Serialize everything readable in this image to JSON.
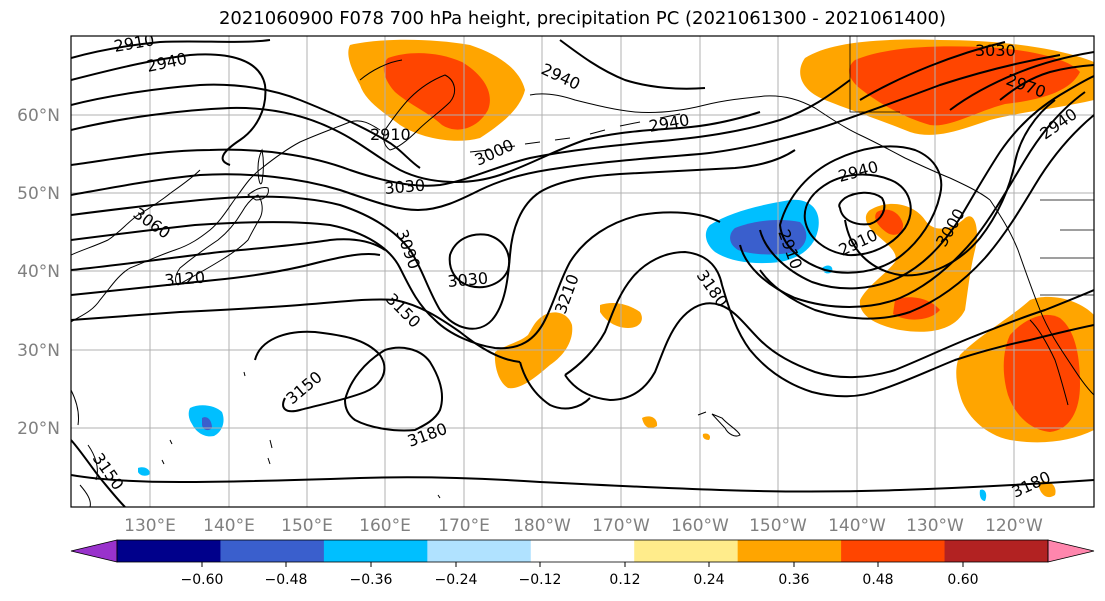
{
  "title": "2021060900 F078 700 hPa height, precipitation PC (2021061300 - 2021061400)",
  "latitude_labels": [
    "60°N",
    "50°N",
    "40°N",
    "30°N",
    "20°N"
  ],
  "longitude_labels": [
    "130°E",
    "140°E",
    "150°E",
    "160°E",
    "170°E",
    "180°W",
    "170°W",
    "160°W",
    "150°W",
    "140°W",
    "130°W",
    "120°W"
  ],
  "contour_labels": {
    "c2910_nw": "2910",
    "c2940_nw": "2940",
    "c2940_n": "2940",
    "c2910_n": "2910",
    "c2940_mid": "2940",
    "c3000_n": "3000",
    "c3030_n": "3030",
    "c3060_w": "3060",
    "c3120_w": "3120",
    "c3090": "3090",
    "c3030_low": "3030",
    "c3150_a": "3150",
    "c3210": "3210",
    "c3180_e": "3180",
    "c2940_e": "2940",
    "c2910_low": "2910",
    "c2910_e": "2910",
    "c3000_e": "3000",
    "c3030_ne": "3030",
    "c2970_ne": "2970",
    "c2940_ne": "2940",
    "c3150_b": "3150",
    "c3180_s": "3180",
    "c3150_sw": "3150",
    "c3180_se": "3180"
  },
  "colorbar": {
    "ticks": [
      "−0.60",
      "−0.48",
      "−0.36",
      "−0.24",
      "−0.12",
      "0.12",
      "0.24",
      "0.36",
      "0.48",
      "0.60"
    ],
    "colors": [
      "#9932cc",
      "#00008b",
      "#3a5fcd",
      "#00bfff",
      "#b0e2ff",
      "#ffffff",
      "#ffec8b",
      "#ffa500",
      "#ff4500",
      "#b22222",
      "#ff86ad"
    ]
  },
  "colors": {
    "shade_light_orange": "#ffa500",
    "shade_dark_orange": "#ff4500",
    "shade_red": "#ff4500",
    "shade_light_blue": "#00bfff",
    "shade_blue": "#3a5fcd",
    "contour": "#000000",
    "grid": "#b0b0b0",
    "coast": "#000000"
  }
}
